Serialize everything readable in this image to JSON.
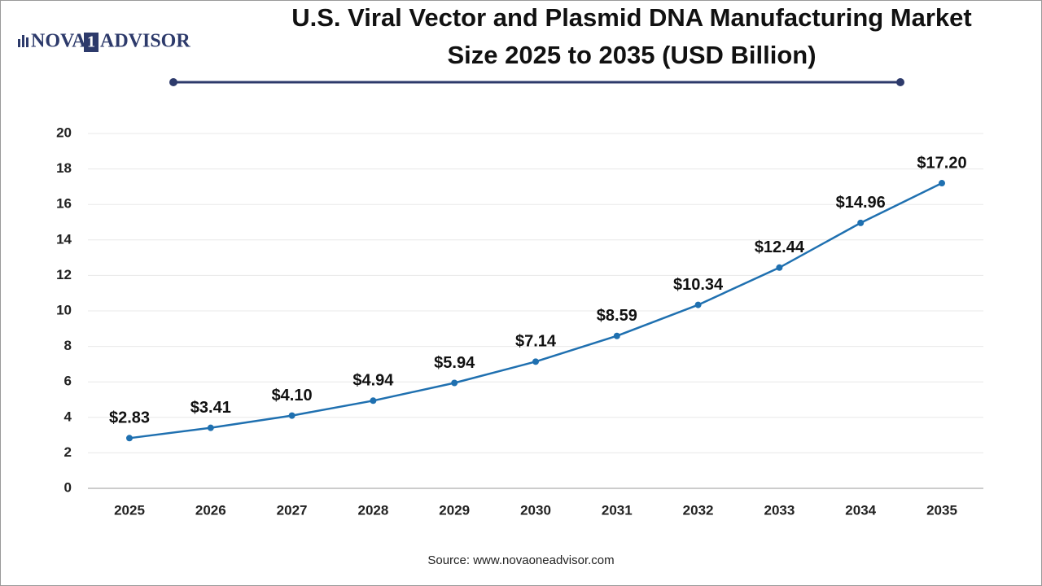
{
  "brand": {
    "left": "NOVA",
    "mark": "1",
    "right": "ADVISOR"
  },
  "chart_data": {
    "type": "line",
    "title": "U.S. Viral Vector and Plasmid DNA Manufacturing Market Size 2025 to 2035 (USD Billion)",
    "source": "Source: www.novaoneadvisor.com",
    "categories": [
      "2025",
      "2026",
      "2027",
      "2028",
      "2029",
      "2030",
      "2031",
      "2032",
      "2033",
      "2034",
      "2035"
    ],
    "values": [
      2.83,
      3.41,
      4.1,
      4.94,
      5.94,
      7.14,
      8.59,
      10.34,
      12.44,
      14.96,
      17.2
    ],
    "value_labels": [
      "$2.83",
      "$3.41",
      "$4.10",
      "$4.94",
      "$5.94",
      "$7.14",
      "$8.59",
      "$10.34",
      "$12.44",
      "$14.96",
      "$17.20"
    ],
    "color": "#1f70b0",
    "ylim": [
      0,
      20
    ],
    "yticks": [
      0,
      2,
      4,
      6,
      8,
      10,
      12,
      14,
      16,
      18,
      20
    ],
    "grid": true
  }
}
